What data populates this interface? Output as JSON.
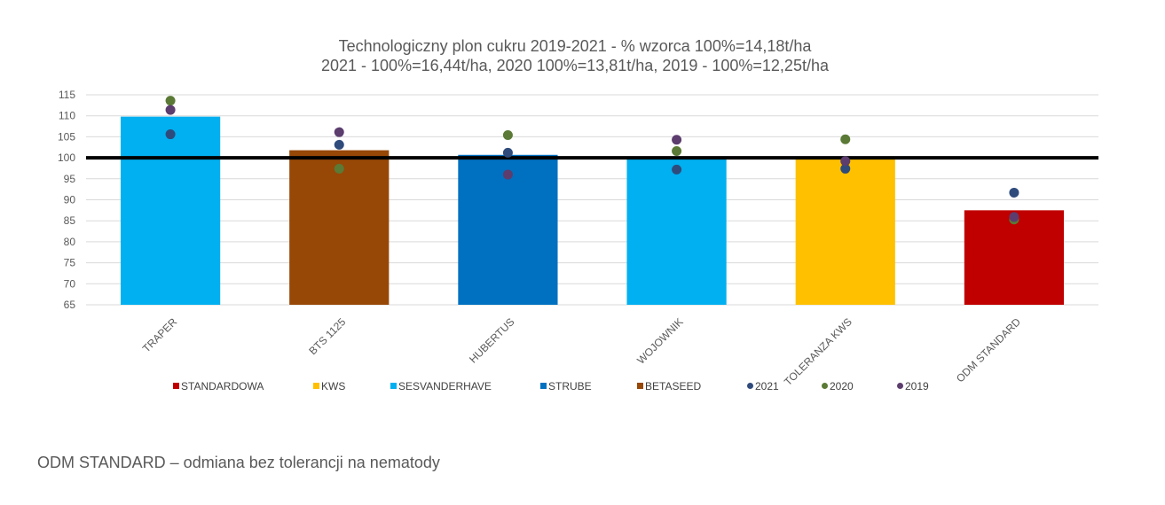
{
  "chart_data": {
    "type": "bar",
    "title_lines": [
      "Technologiczny plon cukru 2019-2021 - % wzorca 100%=14,18t/ha",
      "2021 - 100%=16,44t/ha, 2020 100%=13,81t/ha, 2019 - 100%=12,25t/ha"
    ],
    "categories": [
      "TRAPER",
      "BTS 1125",
      "HUBERTUS",
      "WOJOWNIK",
      "TOLERANZA KWS",
      "ODM STANDARD"
    ],
    "bars": {
      "values": [
        109.8,
        101.8,
        100.7,
        100.0,
        100.0,
        87.5
      ],
      "breeder": [
        "SESVANDERHAVE",
        "BETASEED",
        "STRUBE",
        "SESVANDERHAVE",
        "KWS",
        "STANDARDOWA"
      ]
    },
    "series": [
      {
        "name": "2021",
        "color": "#2f4b7c",
        "values": [
          105.6,
          103.1,
          101.2,
          97.2,
          97.4,
          91.7
        ]
      },
      {
        "name": "2020",
        "color": "#5a7a35",
        "values": [
          113.6,
          97.4,
          105.4,
          101.6,
          104.4,
          85.3
        ]
      },
      {
        "name": "2019",
        "color": "#5c3d6e",
        "values": [
          111.4,
          106.1,
          96.0,
          104.3,
          99.2,
          85.9
        ]
      }
    ],
    "breeders": [
      {
        "name": "STANDARDOWA",
        "color": "#c00000"
      },
      {
        "name": "KWS",
        "color": "#ffc000"
      },
      {
        "name": "SESVANDERHAVE",
        "color": "#00b0f0"
      },
      {
        "name": "STRUBE",
        "color": "#0070c0"
      },
      {
        "name": "BETASEED",
        "color": "#974706"
      }
    ],
    "legend": [
      {
        "name": "STANDARDOWA",
        "color": "#c00000",
        "marker": "square"
      },
      {
        "name": "KWS",
        "color": "#ffc000",
        "marker": "square"
      },
      {
        "name": "SESVANDERHAVE",
        "color": "#00b0f0",
        "marker": "square"
      },
      {
        "name": "STRUBE",
        "color": "#0070c0",
        "marker": "square"
      },
      {
        "name": "BETASEED",
        "color": "#974706",
        "marker": "square"
      },
      {
        "name": "2021",
        "color": "#2f4b7c",
        "marker": "circle"
      },
      {
        "name": "2020",
        "color": "#5a7a35",
        "marker": "circle"
      },
      {
        "name": "2019",
        "color": "#5c3d6e",
        "marker": "circle"
      }
    ],
    "legend_position": "bottom",
    "reference_line": 100,
    "ylim": [
      65,
      115
    ],
    "yticks": [
      65,
      70,
      75,
      80,
      85,
      90,
      95,
      100,
      105,
      110,
      115
    ],
    "grid": true
  },
  "footnote": "ODM STANDARD – odmiana bez tolerancji na nematody"
}
